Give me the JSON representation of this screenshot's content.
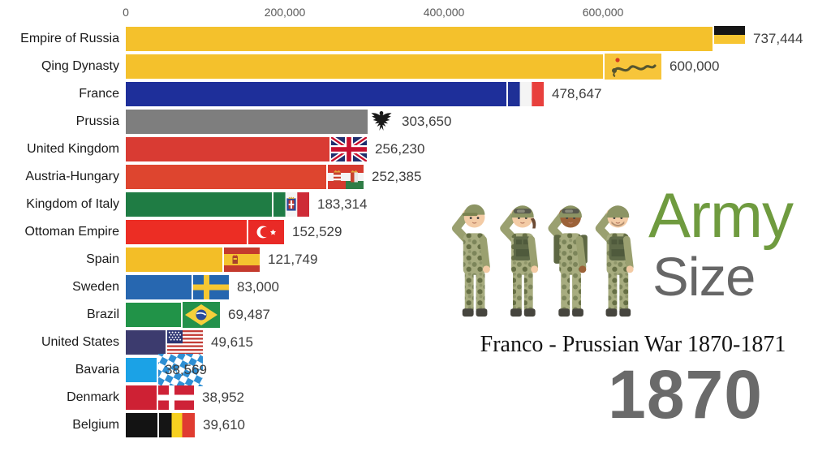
{
  "chart_data": {
    "type": "bar",
    "orientation": "horizontal",
    "title": "Army Size",
    "subtitle": "Franco - Prussian War 1870-1871",
    "year_shown": "1870",
    "x_axis": {
      "tick_values": [
        0,
        200000,
        400000,
        600000
      ],
      "tick_labels": [
        "0",
        "200,000",
        "400,000",
        "600,000"
      ],
      "range": [
        0,
        760000
      ],
      "grid": false
    },
    "legend": "none",
    "rows": [
      {
        "label": "Empire of Russia",
        "value": 737444,
        "display_value": "737,444",
        "color": "#F4C12C",
        "flag": "russia-empire"
      },
      {
        "label": "Qing Dynasty",
        "value": 600000,
        "display_value": "600,000",
        "color": "#F4C12C",
        "flag": "qing-dynasty"
      },
      {
        "label": "France",
        "value": 478647,
        "display_value": "478,647",
        "color": "#1E2F9A",
        "flag": "france"
      },
      {
        "label": "Prussia",
        "value": 303650,
        "display_value": "303,650",
        "color": "#7E7E7E",
        "flag": "prussia"
      },
      {
        "label": "United Kingdom",
        "value": 256230,
        "display_value": "256,230",
        "color": "#D93B33",
        "flag": "united-kingdom"
      },
      {
        "label": "Austria-Hungary",
        "value": 252385,
        "display_value": "252,385",
        "color": "#DE452F",
        "flag": "austria-hungary"
      },
      {
        "label": "Kingdom of Italy",
        "value": 183314,
        "display_value": "183,314",
        "color": "#1F7C44",
        "flag": "kingdom-of-italy"
      },
      {
        "label": "Ottoman Empire",
        "value": 152529,
        "display_value": "152,529",
        "color": "#EC2D24",
        "flag": "ottoman-empire"
      },
      {
        "label": "Spain",
        "value": 121749,
        "display_value": "121,749",
        "color": "#F3BE27",
        "flag": "spain"
      },
      {
        "label": "Sweden",
        "value": 83000,
        "display_value": "83,000",
        "color": "#2767B0",
        "flag": "sweden"
      },
      {
        "label": "Brazil",
        "value": 69487,
        "display_value": "69,487",
        "color": "#219348",
        "flag": "brazil"
      },
      {
        "label": "United States",
        "value": 49615,
        "display_value": "49,615",
        "color": "#3C3B6E",
        "flag": "united-states"
      },
      {
        "label": "Bavaria",
        "value": 38569,
        "display_value": "38,569",
        "color": "#1BA2E6",
        "flag": "bavaria",
        "value_over_flag": true
      },
      {
        "label": "Denmark",
        "value": 38952,
        "display_value": "38,952",
        "color": "#CE2134",
        "flag": "denmark"
      },
      {
        "label": "Belgium",
        "value": 39610,
        "display_value": "39,610",
        "color": "#131313",
        "flag": "belgium"
      }
    ]
  },
  "branding": {
    "army": "Army",
    "size": "Size",
    "army_color": "#6F9B3F",
    "size_color": "#666666",
    "soldiers_icon": "four-saluting-soldiers"
  },
  "caption": {
    "war_title": "Franco - Prussian War 1870-1871",
    "year": "1870",
    "year_color": "#6A6A6A"
  }
}
